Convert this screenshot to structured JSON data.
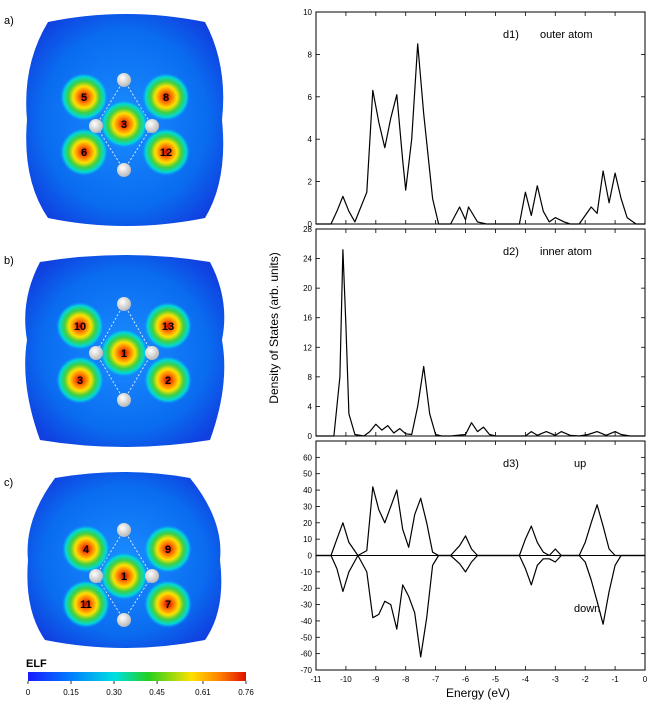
{
  "panels": {
    "a": {
      "label": "a)",
      "sites": [
        {
          "id": "5"
        },
        {
          "id": "8"
        },
        {
          "id": "3"
        },
        {
          "id": "6"
        },
        {
          "id": "12"
        }
      ]
    },
    "b": {
      "label": "b)",
      "sites": [
        {
          "id": "10"
        },
        {
          "id": "13"
        },
        {
          "id": "1"
        },
        {
          "id": "3"
        },
        {
          "id": "2"
        }
      ]
    },
    "c": {
      "label": "c)",
      "sites": [
        {
          "id": "4"
        },
        {
          "id": "9"
        },
        {
          "id": "1"
        },
        {
          "id": "11"
        },
        {
          "id": "7"
        }
      ]
    }
  },
  "colorbar": {
    "title": "ELF",
    "ticks": [
      "0",
      "0.15",
      "0.30",
      "0.45",
      "0.61",
      "0.76"
    ],
    "values": [
      0,
      0.15,
      0.3,
      0.45,
      0.61,
      0.76
    ],
    "colors": [
      "#1a1aff",
      "#0080ff",
      "#00e0e0",
      "#20d020",
      "#ffe000",
      "#ff8000",
      "#e01000"
    ]
  },
  "chart_data": {
    "type": "line",
    "xlabel": "Energy (eV)",
    "ylabel": "Density of States (arb. units)",
    "xlim": [
      -11,
      0
    ],
    "x_ticks": [
      -11,
      -10,
      -9,
      -8,
      -7,
      -6,
      -5,
      -4,
      -3,
      -2,
      -1,
      0
    ],
    "x_tick_labels": [
      "-11",
      "-10",
      "-9",
      "-8",
      "-7",
      "-6",
      "-5",
      "-4",
      "-3",
      "-2",
      "-1",
      "0"
    ],
    "subplots": [
      {
        "label": "d1)",
        "legend": "outer atom",
        "ylim": [
          0,
          10
        ],
        "y_ticks": [
          0,
          2,
          4,
          6,
          8,
          10
        ],
        "y_tick_labels": [
          "0",
          "2",
          "4",
          "6",
          "8",
          "10"
        ],
        "x": [
          -11,
          -10.5,
          -10.3,
          -10.1,
          -9.9,
          -9.7,
          -9.3,
          -9.1,
          -8.9,
          -8.7,
          -8.5,
          -8.3,
          -8.1,
          -8.0,
          -7.8,
          -7.6,
          -7.4,
          -7.1,
          -6.9,
          -6.5,
          -6.2,
          -6.0,
          -5.9,
          -5.6,
          -5.3,
          -5.1,
          -4.9,
          -4.6,
          -4.2,
          -4.0,
          -3.8,
          -3.6,
          -3.4,
          -3.2,
          -3.0,
          -2.7,
          -2.5,
          -2.2,
          -2.0,
          -1.8,
          -1.6,
          -1.4,
          -1.2,
          -1.0,
          -0.8,
          -0.6,
          -0.3,
          0
        ],
        "y": [
          0,
          0,
          0.6,
          1.3,
          0.6,
          0.1,
          1.5,
          6.3,
          4.8,
          3.6,
          5.0,
          6.1,
          3.0,
          1.6,
          4.0,
          8.5,
          5.2,
          1.2,
          0,
          0,
          0.8,
          0.2,
          0.8,
          0.1,
          0,
          0,
          0,
          0,
          0,
          1.5,
          0.4,
          1.8,
          0.6,
          0.1,
          0.3,
          0.1,
          0,
          0,
          0.4,
          0.8,
          0.5,
          2.5,
          1.0,
          2.4,
          1.2,
          0.3,
          0,
          0
        ]
      },
      {
        "label": "d2)",
        "legend": "inner atom",
        "ylim": [
          0,
          28
        ],
        "y_ticks": [
          0,
          4,
          8,
          12,
          16,
          20,
          24,
          28
        ],
        "y_tick_labels": [
          "0",
          "4",
          "8",
          "12",
          "16",
          "20",
          "24",
          "28"
        ],
        "x": [
          -11,
          -10.4,
          -10.2,
          -10.1,
          -10.0,
          -9.9,
          -9.7,
          -9.4,
          -9.2,
          -9.0,
          -8.8,
          -8.6,
          -8.4,
          -8.2,
          -8.0,
          -7.8,
          -7.6,
          -7.4,
          -7.2,
          -7.0,
          -6.8,
          -6.5,
          -6.0,
          -5.8,
          -5.6,
          -5.4,
          -5.2,
          -5.0,
          -4.8,
          -4.6,
          -4.3,
          -4.0,
          -3.8,
          -3.6,
          -3.3,
          -3.0,
          -2.8,
          -2.5,
          -2.2,
          -1.9,
          -1.6,
          -1.3,
          -1.0,
          -0.8,
          -0.5,
          0
        ],
        "y": [
          0,
          0,
          8,
          25.2,
          15,
          3,
          0.2,
          0,
          0.6,
          1.6,
          0.8,
          1.4,
          0.4,
          1.0,
          0.3,
          0.2,
          4.0,
          9.4,
          3.0,
          0.2,
          0,
          0,
          0.2,
          1.8,
          0.6,
          1.2,
          0.2,
          0,
          0,
          0,
          0,
          0,
          0.6,
          0.1,
          0.6,
          0.1,
          0.6,
          0.1,
          0,
          0.2,
          0.6,
          0.1,
          0.6,
          0.2,
          0,
          0
        ]
      },
      {
        "label": "d3)",
        "legend_up": "up",
        "legend_down": "down",
        "ylim": [
          -70,
          70
        ],
        "y_ticks": [
          -70,
          -60,
          -50,
          -40,
          -30,
          -20,
          -10,
          0,
          10,
          20,
          30,
          40,
          50,
          60
        ],
        "y_tick_labels": [
          "-70",
          "-60",
          "-50",
          "-40",
          "-30",
          "-20",
          "-10",
          "0",
          "10",
          "20",
          "30",
          "40",
          "50",
          "60"
        ],
        "series": [
          {
            "name": "up",
            "x": [
              -11,
              -10.5,
              -10.3,
              -10.1,
              -9.9,
              -9.6,
              -9.3,
              -9.1,
              -8.9,
              -8.7,
              -8.5,
              -8.3,
              -8.1,
              -7.9,
              -7.7,
              -7.5,
              -7.3,
              -7.1,
              -6.9,
              -6.5,
              -6.2,
              -6.0,
              -5.8,
              -5.6,
              -5.3,
              -5.0,
              -4.6,
              -4.2,
              -4.0,
              -3.8,
              -3.6,
              -3.4,
              -3.2,
              -3.0,
              -2.8,
              -2.6,
              -2.2,
              -2.0,
              -1.8,
              -1.6,
              -1.4,
              -1.2,
              -1.0,
              -0.8,
              -0.5,
              0
            ],
            "y": [
              0,
              0,
              10,
              20,
              8,
              0,
              3,
              42,
              28,
              20,
              30,
              40,
              16,
              5,
              25,
              35,
              20,
              2,
              0,
              0,
              6,
              12,
              4,
              0,
              0,
              0,
              0,
              0,
              10,
              18,
              8,
              2,
              0,
              4,
              0,
              0,
              0,
              8,
              20,
              31,
              18,
              4,
              0,
              0,
              0,
              0
            ]
          },
          {
            "name": "down",
            "x": [
              -11,
              -10.5,
              -10.3,
              -10.1,
              -9.9,
              -9.6,
              -9.3,
              -9.1,
              -8.9,
              -8.7,
              -8.5,
              -8.3,
              -8.1,
              -7.9,
              -7.7,
              -7.5,
              -7.3,
              -7.1,
              -6.9,
              -6.5,
              -6.2,
              -6.0,
              -5.8,
              -5.6,
              -5.3,
              -5.0,
              -4.6,
              -4.2,
              -4.0,
              -3.8,
              -3.6,
              -3.4,
              -3.2,
              -3.0,
              -2.8,
              -2.6,
              -2.2,
              -2.0,
              -1.8,
              -1.6,
              -1.4,
              -1.2,
              -1.0,
              -0.8,
              -0.5,
              0
            ],
            "y": [
              0,
              0,
              -8,
              -22,
              -10,
              0,
              -10,
              -38,
              -36,
              -28,
              -30,
              -45,
              -18,
              -25,
              -35,
              -62,
              -38,
              -6,
              0,
              0,
              -5,
              -10,
              -4,
              0,
              0,
              0,
              0,
              0,
              -8,
              -18,
              -6,
              -2,
              -2,
              -4,
              0,
              0,
              0,
              -4,
              -15,
              -28,
              -42,
              -22,
              -6,
              0,
              0,
              0
            ]
          }
        ]
      }
    ]
  }
}
